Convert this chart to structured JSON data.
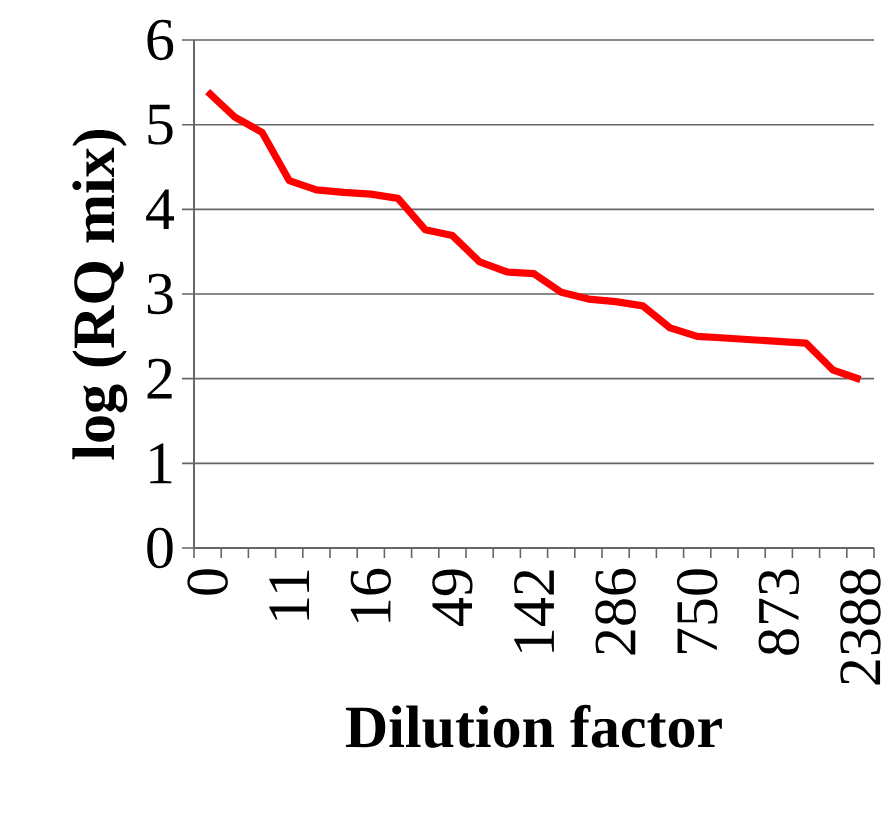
{
  "chart_data": {
    "type": "line",
    "xlabel": "Dilution factor",
    "ylabel": "log (RQ mix)",
    "categories": [
      "0",
      null,
      null,
      "11",
      null,
      null,
      "16",
      null,
      null,
      "49",
      null,
      null,
      "142",
      null,
      null,
      "286",
      null,
      null,
      "750",
      null,
      null,
      "873",
      null,
      null,
      "2388"
    ],
    "series": [
      {
        "color": "#ff0000",
        "values": [
          5.39,
          5.09,
          4.91,
          4.34,
          4.23,
          4.2,
          4.18,
          4.13,
          3.76,
          3.69,
          3.38,
          3.26,
          3.24,
          3.02,
          2.94,
          2.91,
          2.86,
          2.6,
          2.5,
          2.48,
          2.46,
          2.44,
          2.42,
          2.1,
          1.99
        ]
      }
    ],
    "ylim": [
      0,
      6
    ],
    "yticks": [
      0,
      1,
      2,
      3,
      4,
      5,
      6
    ],
    "grid": "y",
    "marker": "none",
    "line_style": "solid"
  }
}
